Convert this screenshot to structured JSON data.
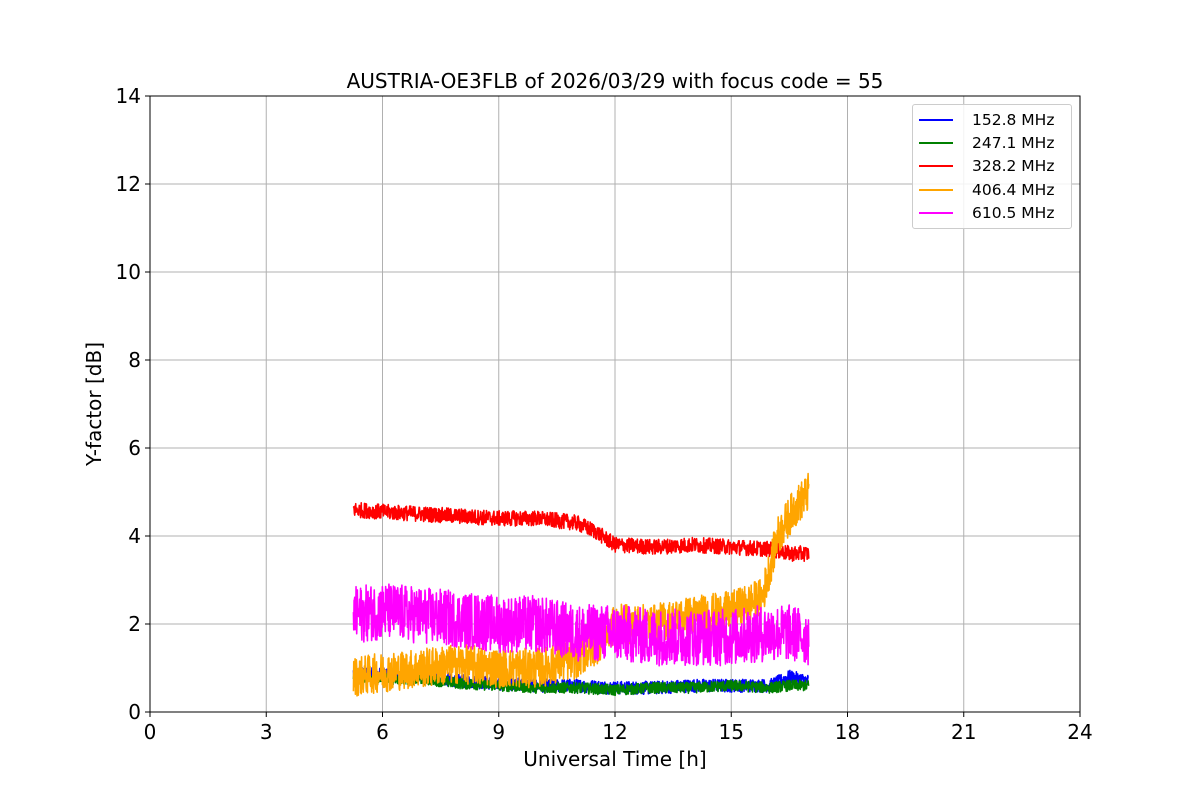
{
  "chart_data": {
    "type": "line",
    "title": "AUSTRIA-OE3FLB of 2026/03/29 with focus code = 55",
    "xlabel": "Universal Time [h]",
    "ylabel": "Y-factor [dB]",
    "xlim": [
      0,
      24
    ],
    "ylim": [
      0,
      14
    ],
    "xticks": [
      0,
      3,
      6,
      9,
      12,
      15,
      18,
      21,
      24
    ],
    "yticks": [
      0,
      2,
      4,
      6,
      8,
      10,
      12,
      14
    ],
    "grid": true,
    "legend_position": "top-right",
    "series": [
      {
        "name": "152.8 MHz",
        "color": "#0000ff",
        "x": [
          5.25,
          6,
          7,
          8,
          9,
          10,
          11,
          12,
          13,
          14,
          15,
          16,
          16.5,
          17.0
        ],
        "y": [
          0.9,
          0.85,
          0.8,
          0.7,
          0.65,
          0.6,
          0.6,
          0.55,
          0.55,
          0.6,
          0.6,
          0.6,
          0.8,
          0.7
        ],
        "noise": 0.3
      },
      {
        "name": "247.1 MHz",
        "color": "#008000",
        "x": [
          5.25,
          6,
          7,
          8,
          9,
          10,
          11,
          12,
          13,
          14,
          15,
          16,
          16.5,
          17.0
        ],
        "y": [
          0.8,
          0.75,
          0.75,
          0.65,
          0.6,
          0.55,
          0.55,
          0.5,
          0.55,
          0.55,
          0.6,
          0.55,
          0.6,
          0.6
        ],
        "noise": 0.25
      },
      {
        "name": "328.2 MHz",
        "color": "#ff0000",
        "x": [
          5.25,
          6,
          7,
          8,
          9,
          10,
          10.5,
          11,
          11.5,
          12,
          13,
          14,
          15,
          16,
          16.5,
          17.0
        ],
        "y": [
          4.6,
          4.55,
          4.5,
          4.45,
          4.4,
          4.4,
          4.35,
          4.3,
          4.1,
          3.8,
          3.75,
          3.8,
          3.75,
          3.7,
          3.6,
          3.6
        ],
        "noise": 0.35
      },
      {
        "name": "406.4 MHz",
        "color": "#ffa500",
        "x": [
          5.25,
          6,
          7,
          8,
          9,
          10,
          11,
          11.5,
          12,
          13,
          14,
          15,
          15.8,
          16.2,
          16.6,
          17.0
        ],
        "y": [
          0.8,
          0.9,
          1.0,
          1.1,
          1.0,
          1.0,
          1.2,
          1.5,
          2.0,
          2.0,
          2.2,
          2.3,
          2.6,
          4.0,
          4.6,
          5.0
        ],
        "noise": 0.9
      },
      {
        "name": "610.5 MHz",
        "color": "#ff00ff",
        "x": [
          5.25,
          6,
          7,
          8,
          9,
          10,
          11,
          12,
          13,
          14,
          15,
          16,
          16.5,
          17.0
        ],
        "y": [
          2.2,
          2.3,
          2.2,
          2.1,
          2.0,
          2.0,
          1.8,
          1.8,
          1.7,
          1.7,
          1.7,
          1.8,
          1.8,
          1.7
        ],
        "noise": 1.3
      }
    ]
  }
}
